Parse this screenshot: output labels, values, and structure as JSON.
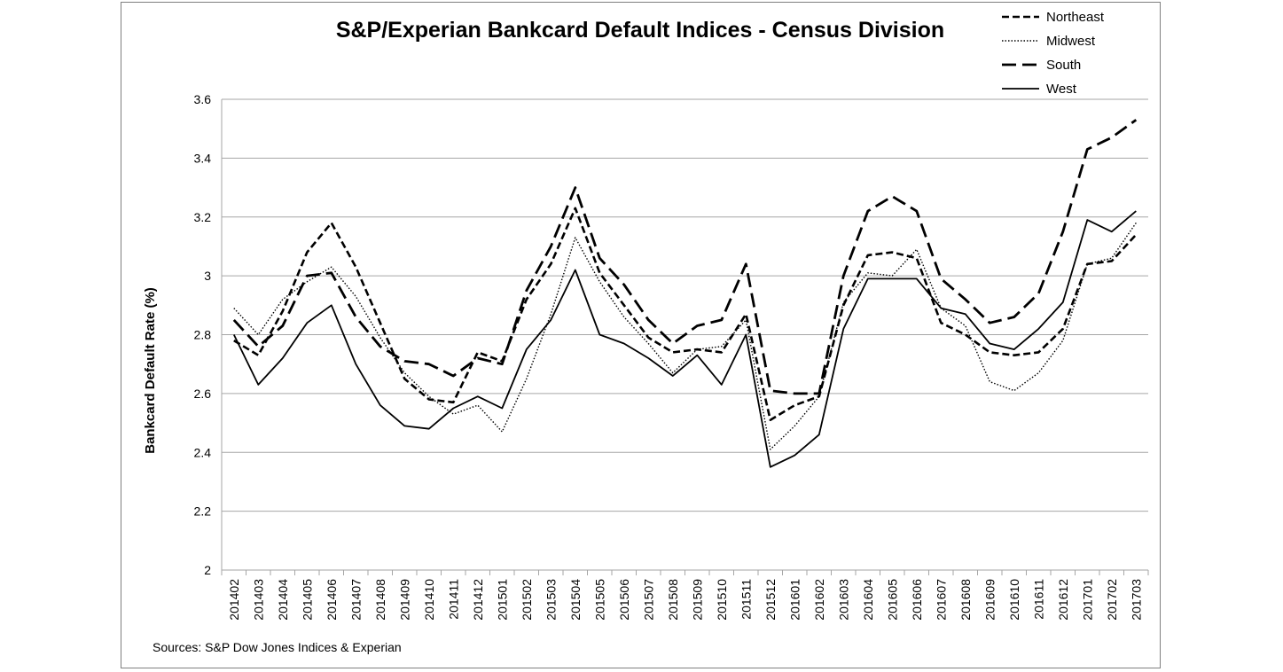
{
  "chart_data": {
    "type": "line",
    "title": "S&P/Experian Bankcard Default Indices - Census Division",
    "xlabel": "",
    "ylabel": "Bankcard Default Rate (%)",
    "source": "Sources: S&P Dow Jones Indices & Experian",
    "ylim": [
      2,
      3.6
    ],
    "yticks": [
      "2",
      "2.2",
      "2.4",
      "2.6",
      "2.8",
      "3",
      "3.2",
      "3.4",
      "3.6"
    ],
    "grid": true,
    "legend_position": "top-right",
    "categories": [
      "201402",
      "201403",
      "201404",
      "201405",
      "201406",
      "201407",
      "201408",
      "201409",
      "201410",
      "201411",
      "201412",
      "201501",
      "201502",
      "201503",
      "201504",
      "201505",
      "201506",
      "201507",
      "201508",
      "201509",
      "201510",
      "201511",
      "201512",
      "201601",
      "201602",
      "201603",
      "201604",
      "201605",
      "201606",
      "201607",
      "201608",
      "201609",
      "201610",
      "201611",
      "201612",
      "201701",
      "201702",
      "201703"
    ],
    "series": [
      {
        "name": "Northeast",
        "dash": "8 4",
        "width": 2.6,
        "values": [
          2.78,
          2.73,
          2.88,
          3.08,
          3.18,
          3.03,
          2.84,
          2.65,
          2.58,
          2.57,
          2.74,
          2.71,
          2.92,
          3.04,
          3.23,
          3.01,
          2.9,
          2.79,
          2.74,
          2.75,
          2.74,
          2.87,
          2.51,
          2.56,
          2.59,
          2.9,
          3.07,
          3.08,
          3.06,
          2.84,
          2.8,
          2.74,
          2.73,
          2.74,
          2.82,
          3.04,
          3.05,
          3.14
        ]
      },
      {
        "name": "Midwest",
        "dash": "1.5 2",
        "width": 1.4,
        "values": [
          2.89,
          2.8,
          2.92,
          2.98,
          3.03,
          2.93,
          2.79,
          2.67,
          2.59,
          2.53,
          2.56,
          2.47,
          2.65,
          2.87,
          3.13,
          2.98,
          2.86,
          2.77,
          2.67,
          2.75,
          2.76,
          2.85,
          2.41,
          2.49,
          2.59,
          2.91,
          3.01,
          3.0,
          3.09,
          2.89,
          2.83,
          2.64,
          2.61,
          2.67,
          2.78,
          3.04,
          3.06,
          3.18
        ]
      },
      {
        "name": "South",
        "dash": "16 7",
        "width": 2.8,
        "values": [
          2.85,
          2.76,
          2.83,
          3.0,
          3.01,
          2.86,
          2.76,
          2.71,
          2.7,
          2.66,
          2.72,
          2.7,
          2.95,
          3.1,
          3.3,
          3.06,
          2.97,
          2.85,
          2.77,
          2.83,
          2.85,
          3.04,
          2.61,
          2.6,
          2.6,
          3.0,
          3.22,
          3.27,
          3.22,
          2.99,
          2.92,
          2.84,
          2.86,
          2.94,
          3.15,
          3.43,
          3.47,
          3.53
        ]
      },
      {
        "name": "West",
        "dash": "",
        "width": 1.8,
        "values": [
          2.8,
          2.63,
          2.72,
          2.84,
          2.9,
          2.7,
          2.56,
          2.49,
          2.48,
          2.55,
          2.59,
          2.55,
          2.75,
          2.85,
          3.02,
          2.8,
          2.77,
          2.72,
          2.66,
          2.73,
          2.63,
          2.8,
          2.35,
          2.39,
          2.46,
          2.82,
          2.99,
          2.99,
          2.99,
          2.89,
          2.87,
          2.77,
          2.75,
          2.82,
          2.91,
          3.19,
          3.15,
          3.22
        ]
      }
    ]
  }
}
